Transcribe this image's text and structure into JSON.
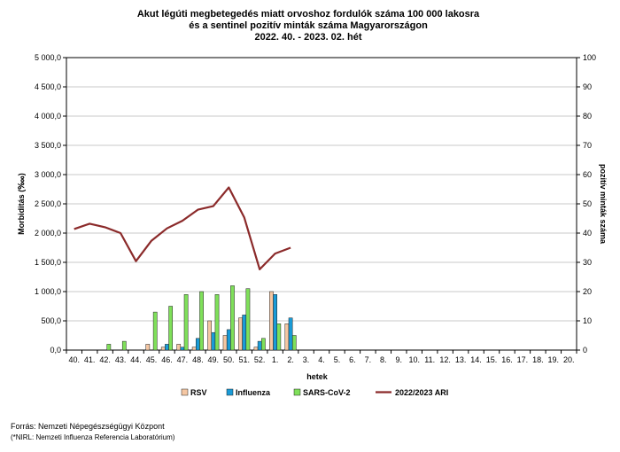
{
  "chart_data": {
    "type": "bar",
    "title_lines": [
      "Akut légúti megbetegedés miatt orvoshoz fordulók száma 100 000 lakosra",
      "és a sentinel pozitív minták száma Magyarországon",
      "2022. 40. - 2023. 02. hét"
    ],
    "xlabel": "hetek",
    "ylabel": "Morbiditás (‱)",
    "y2label": "pozitív minták száma",
    "categories": [
      "40.",
      "41.",
      "42.",
      "43.",
      "44.",
      "45.",
      "46.",
      "47.",
      "48.",
      "49.",
      "50.",
      "51.",
      "52.",
      "1.",
      "2.",
      "3.",
      "4.",
      "5.",
      "6.",
      "7.",
      "8.",
      "9.",
      "10.",
      "11.",
      "12.",
      "13.",
      "14.",
      "15.",
      "16.",
      "17.",
      "18.",
      "19.",
      "20."
    ],
    "ylim": [
      0,
      5000
    ],
    "y2lim": [
      0,
      100
    ],
    "y_ticks": [
      "0,0",
      "500,0",
      "1 000,0",
      "1 500,0",
      "2 000,0",
      "2 500,0",
      "3 000,0",
      "3 500,0",
      "4 000,0",
      "4 500,0",
      "5 000,0"
    ],
    "y2_ticks": [
      "0",
      "10",
      "20",
      "30",
      "40",
      "50",
      "60",
      "70",
      "80",
      "90",
      "100"
    ],
    "grid": true,
    "legend_position": "bottom",
    "series": [
      {
        "name": "RSV",
        "axis": "right",
        "kind": "bar",
        "color": "#f5c7a3",
        "values": [
          0,
          0,
          0,
          0,
          0,
          2,
          1,
          2,
          1,
          10,
          5,
          11,
          1,
          20,
          9,
          null,
          null,
          null,
          null,
          null,
          null,
          null,
          null,
          null,
          null,
          null,
          null,
          null,
          null,
          null,
          null,
          null,
          null
        ]
      },
      {
        "name": "Influenza",
        "axis": "right",
        "kind": "bar",
        "color": "#1a9bd7",
        "values": [
          0,
          0,
          0,
          0,
          0,
          0,
          2,
          1,
          4,
          6,
          7,
          12,
          3,
          19,
          11,
          null,
          null,
          null,
          null,
          null,
          null,
          null,
          null,
          null,
          null,
          null,
          null,
          null,
          null,
          null,
          null,
          null,
          null
        ]
      },
      {
        "name": "SARS-CoV-2",
        "axis": "right",
        "kind": "bar",
        "color": "#7fe05a",
        "values": [
          0,
          0,
          2,
          3,
          0,
          13,
          15,
          19,
          20,
          19,
          22,
          21,
          4,
          9,
          5,
          null,
          null,
          null,
          null,
          null,
          null,
          null,
          null,
          null,
          null,
          null,
          null,
          null,
          null,
          null,
          null,
          null,
          null
        ]
      },
      {
        "name": "2022/2023 ARI",
        "axis": "left",
        "kind": "line",
        "color": "#8b2a2a",
        "values": [
          2070,
          2160,
          2100,
          2000,
          1520,
          1870,
          2080,
          2210,
          2400,
          2460,
          2780,
          2270,
          1380,
          1650,
          1750,
          null,
          null,
          null,
          null,
          null,
          null,
          null,
          null,
          null,
          null,
          null,
          null,
          null,
          null,
          null,
          null,
          null,
          null
        ]
      }
    ]
  },
  "source_lines": [
    "Forrás: Nemzeti Népegészségügyi Központ",
    "(*NIRL: Nemzeti Influenza Referencia Laboratórium)"
  ]
}
